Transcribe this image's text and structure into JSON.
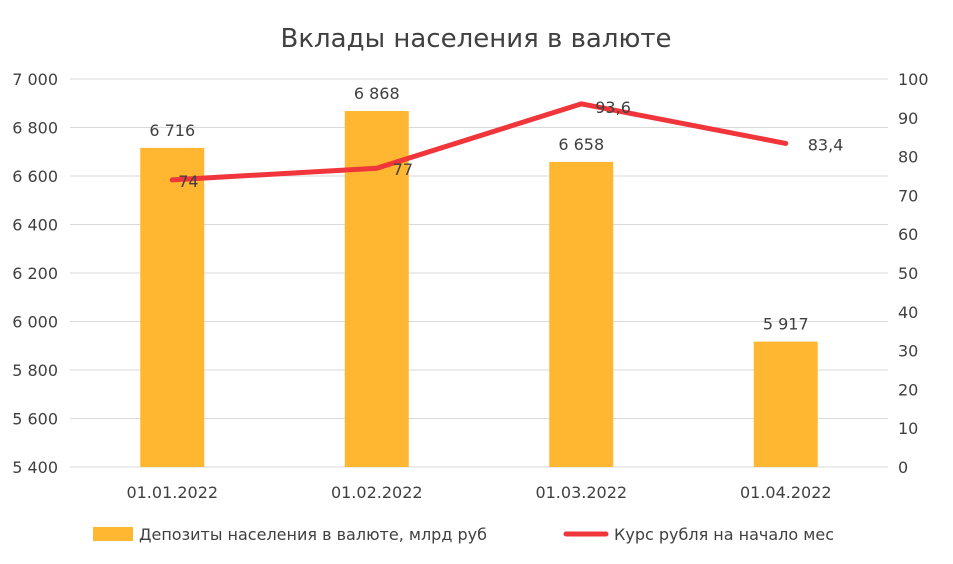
{
  "chart_data": {
    "type": "bar",
    "title": "Вклады населения в валюте",
    "categories": [
      "01.01.2022",
      "01.02.2022",
      "01.03.2022",
      "01.04.2022"
    ],
    "series": [
      {
        "name": "Депозиты населения в валюте, млрд руб",
        "type": "bar",
        "axis": "left",
        "values": [
          6716,
          6868,
          6658,
          5917
        ],
        "labels": [
          "6 716",
          "6 868",
          "6 658",
          "5 917"
        ],
        "color": "#FFB732"
      },
      {
        "name": "Курс рубля на начало мес",
        "type": "line",
        "axis": "right",
        "values": [
          74,
          77,
          93.6,
          83.4
        ],
        "labels": [
          "74",
          "77",
          "93,6",
          "83,4"
        ],
        "color": "#F0363A"
      }
    ],
    "y_left": {
      "ylim": [
        5400,
        7000
      ],
      "ticks": [
        5400,
        5600,
        5800,
        6000,
        6200,
        6400,
        6600,
        6800,
        7000
      ],
      "tick_labels": [
        "5 400",
        "5 600",
        "5 800",
        "6 000",
        "6 200",
        "6 400",
        "6 600",
        "6 800",
        "7 000"
      ]
    },
    "y_right": {
      "ylim": [
        0,
        100
      ],
      "ticks": [
        0,
        10,
        20,
        30,
        40,
        50,
        60,
        70,
        80,
        90,
        100
      ],
      "tick_labels": [
        "0",
        "10",
        "20",
        "30",
        "40",
        "50",
        "60",
        "70",
        "80",
        "90",
        "100"
      ]
    },
    "grid": true,
    "legend": "bottom"
  }
}
